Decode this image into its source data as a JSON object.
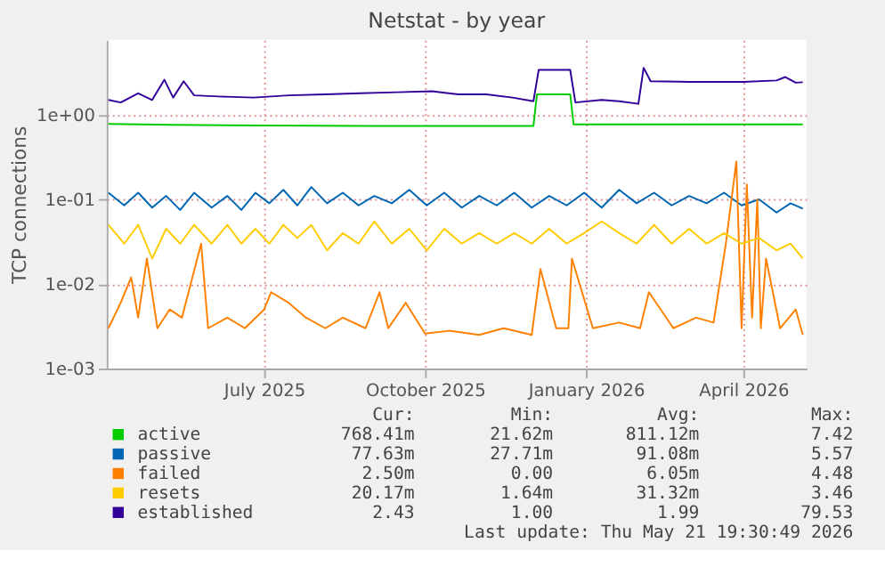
{
  "chart_data": {
    "type": "line",
    "title": "Netstat - by year",
    "ylabel": "TCP connections",
    "log": "y",
    "grid": true,
    "legend": "bottom",
    "line_style": "solid",
    "marker": "none",
    "xlim": [
      "2025-04-02",
      "2026-05-07"
    ],
    "xticks": [
      {
        "value": "2025-07-01",
        "label": "July 2025"
      },
      {
        "value": "2025-10-01",
        "label": "October 2025"
      },
      {
        "value": "2026-01-01",
        "label": "January 2026"
      },
      {
        "value": "2026-04-01",
        "label": "April 2026"
      }
    ],
    "ylim": [
      0.001,
      7.7
    ],
    "yticks": [
      {
        "value": 1,
        "label": "1e+00"
      },
      {
        "value": 0.1,
        "label": "1e-01"
      },
      {
        "value": 0.01,
        "label": "1e-02"
      },
      {
        "value": 0.001,
        "label": "1e-03"
      }
    ],
    "series": [
      {
        "name": "active",
        "color": "#00cc00",
        "x": [
          "2025-04-03",
          "2025-05-10",
          "2025-07-01",
          "2025-09-01",
          "2025-12-02",
          "2025-12-04",
          "2025-12-23",
          "2025-12-25",
          "2026-03-01",
          "2026-05-05"
        ],
        "values": [
          0.78,
          0.76,
          0.75,
          0.74,
          0.74,
          1.75,
          1.75,
          0.77,
          0.77,
          0.77
        ]
      },
      {
        "name": "passive",
        "color": "#0066b3",
        "x": [
          "2025-04-03",
          "2025-04-12",
          "2025-04-20",
          "2025-04-28",
          "2025-05-06",
          "2025-05-14",
          "2025-05-22",
          "2025-06-01",
          "2025-06-10",
          "2025-06-18",
          "2025-06-26",
          "2025-07-04",
          "2025-07-12",
          "2025-07-20",
          "2025-07-28",
          "2025-08-06",
          "2025-08-15",
          "2025-08-24",
          "2025-09-02",
          "2025-09-12",
          "2025-09-22",
          "2025-10-02",
          "2025-10-12",
          "2025-10-22",
          "2025-11-01",
          "2025-11-11",
          "2025-11-21",
          "2025-12-01",
          "2025-12-11",
          "2025-12-21",
          "2025-12-31",
          "2026-01-10",
          "2026-01-20",
          "2026-01-30",
          "2026-02-09",
          "2026-02-19",
          "2026-03-01",
          "2026-03-11",
          "2026-03-21",
          "2026-03-31",
          "2026-04-10",
          "2026-04-20",
          "2026-04-28",
          "2026-05-05"
        ],
        "values": [
          0.12,
          0.085,
          0.12,
          0.08,
          0.11,
          0.075,
          0.12,
          0.08,
          0.11,
          0.075,
          0.12,
          0.09,
          0.13,
          0.085,
          0.14,
          0.09,
          0.12,
          0.085,
          0.11,
          0.09,
          0.13,
          0.085,
          0.12,
          0.08,
          0.11,
          0.085,
          0.12,
          0.08,
          0.11,
          0.085,
          0.12,
          0.08,
          0.13,
          0.09,
          0.12,
          0.085,
          0.11,
          0.09,
          0.12,
          0.085,
          0.1,
          0.07,
          0.09,
          0.078
        ]
      },
      {
        "name": "failed",
        "color": "#ff8000",
        "x": [
          "2025-04-03",
          "2025-04-10",
          "2025-04-16",
          "2025-04-20",
          "2025-04-25",
          "2025-05-01",
          "2025-05-08",
          "2025-05-15",
          "2025-05-26",
          "2025-05-30",
          "2025-06-10",
          "2025-06-20",
          "2025-07-01",
          "2025-07-05",
          "2025-07-15",
          "2025-07-25",
          "2025-08-05",
          "2025-08-15",
          "2025-08-28",
          "2025-09-05",
          "2025-09-10",
          "2025-09-20",
          "2025-10-01",
          "2025-10-15",
          "2025-11-01",
          "2025-11-15",
          "2025-12-01",
          "2025-12-06",
          "2025-12-15",
          "2025-12-22",
          "2025-12-24",
          "2026-01-05",
          "2026-01-20",
          "2026-02-01",
          "2026-02-06",
          "2026-02-20",
          "2026-03-05",
          "2026-03-15",
          "2026-03-22",
          "2026-03-28",
          "2026-03-31",
          "2026-04-03",
          "2026-04-06",
          "2026-04-09",
          "2026-04-11",
          "2026-04-14",
          "2026-04-22",
          "2026-05-01",
          "2026-05-05"
        ],
        "values": [
          0.003,
          0.006,
          0.012,
          0.004,
          0.02,
          0.003,
          0.005,
          0.004,
          0.03,
          0.003,
          0.004,
          0.003,
          0.005,
          0.008,
          0.006,
          0.004,
          0.003,
          0.004,
          0.003,
          0.008,
          0.003,
          0.006,
          0.0026,
          0.0028,
          0.0025,
          0.003,
          0.0025,
          0.015,
          0.003,
          0.003,
          0.02,
          0.003,
          0.0035,
          0.003,
          0.008,
          0.003,
          0.004,
          0.0035,
          0.03,
          0.28,
          0.003,
          0.15,
          0.004,
          0.1,
          0.003,
          0.02,
          0.003,
          0.005,
          0.0025
        ]
      },
      {
        "name": "resets",
        "color": "#ffcc00",
        "x": [
          "2025-04-03",
          "2025-04-12",
          "2025-04-20",
          "2025-04-28",
          "2025-05-06",
          "2025-05-14",
          "2025-05-22",
          "2025-06-01",
          "2025-06-10",
          "2025-06-18",
          "2025-06-26",
          "2025-07-04",
          "2025-07-12",
          "2025-07-20",
          "2025-07-28",
          "2025-08-06",
          "2025-08-15",
          "2025-08-24",
          "2025-09-02",
          "2025-09-12",
          "2025-09-22",
          "2025-10-02",
          "2025-10-12",
          "2025-10-22",
          "2025-11-01",
          "2025-11-11",
          "2025-11-21",
          "2025-12-01",
          "2025-12-11",
          "2025-12-21",
          "2025-12-31",
          "2026-01-10",
          "2026-01-20",
          "2026-01-30",
          "2026-02-09",
          "2026-02-19",
          "2026-03-01",
          "2026-03-11",
          "2026-03-21",
          "2026-03-31",
          "2026-04-10",
          "2026-04-20",
          "2026-04-28",
          "2026-05-05"
        ],
        "values": [
          0.05,
          0.03,
          0.05,
          0.02,
          0.045,
          0.03,
          0.05,
          0.03,
          0.05,
          0.03,
          0.045,
          0.03,
          0.05,
          0.035,
          0.05,
          0.025,
          0.04,
          0.03,
          0.055,
          0.03,
          0.045,
          0.025,
          0.045,
          0.03,
          0.04,
          0.03,
          0.04,
          0.03,
          0.045,
          0.03,
          0.04,
          0.055,
          0.04,
          0.03,
          0.05,
          0.03,
          0.045,
          0.03,
          0.04,
          0.03,
          0.035,
          0.025,
          0.03,
          0.02
        ]
      },
      {
        "name": "established",
        "color": "#330099",
        "x": [
          "2025-04-03",
          "2025-04-10",
          "2025-04-20",
          "2025-04-28",
          "2025-05-05",
          "2025-05-10",
          "2025-05-16",
          "2025-05-22",
          "2025-06-05",
          "2025-06-25",
          "2025-07-15",
          "2025-08-05",
          "2025-08-25",
          "2025-09-15",
          "2025-10-05",
          "2025-10-20",
          "2025-11-05",
          "2025-11-20",
          "2025-12-02",
          "2025-12-05",
          "2025-12-23",
          "2025-12-26",
          "2026-01-10",
          "2026-01-20",
          "2026-01-31",
          "2026-02-03",
          "2026-02-07",
          "2026-03-01",
          "2026-04-01",
          "2026-04-20",
          "2026-04-25",
          "2026-05-01",
          "2026-05-05"
        ],
        "values": [
          1.5,
          1.4,
          1.8,
          1.5,
          2.6,
          1.6,
          2.5,
          1.7,
          1.65,
          1.6,
          1.7,
          1.75,
          1.8,
          1.85,
          1.9,
          1.75,
          1.75,
          1.6,
          1.45,
          3.4,
          3.4,
          1.4,
          1.5,
          1.45,
          1.35,
          3.6,
          2.5,
          2.45,
          2.45,
          2.55,
          2.8,
          2.4,
          2.43
        ]
      }
    ],
    "annotations": [
      "Cur:",
      "Min:",
      "Avg:",
      "Max:",
      "768.41m",
      "21.62m",
      "811.12m",
      "7.42",
      "77.63m",
      "27.71m",
      "91.08m",
      "5.57",
      "2.50m",
      "0.00",
      "6.05m",
      "4.48",
      "20.17m",
      "1.64m",
      "31.32m",
      "3.46",
      "2.43",
      "1.00",
      "1.99",
      "79.53",
      "Last update: Thu May 21 19:30:49 2026"
    ]
  }
}
